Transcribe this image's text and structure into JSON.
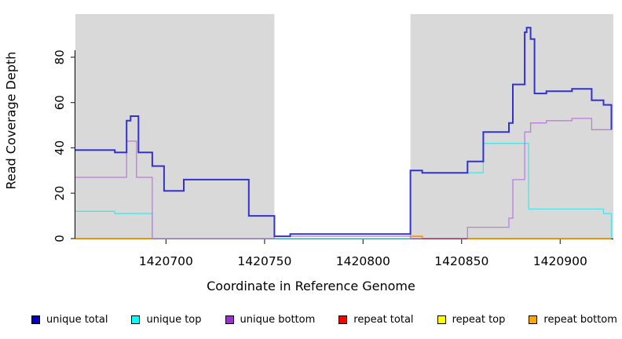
{
  "chart_data": {
    "type": "line",
    "subtype": "step",
    "title": "",
    "xlabel": "Coordinate in Reference Genome",
    "ylabel": "Read Coverage Depth",
    "xlim": [
      1420654,
      1420927
    ],
    "ylim": [
      0,
      99
    ],
    "x_ticks": [
      1420700,
      1420750,
      1420800,
      1420850,
      1420900
    ],
    "y_ticks": [
      0,
      20,
      40,
      60,
      80
    ],
    "grid": false,
    "legend_position": "bottom",
    "shaded_regions": {
      "color": "#d9d9d9",
      "ranges": [
        [
          1420654,
          1420755
        ],
        [
          1420824,
          1420927
        ]
      ]
    },
    "legend": {
      "entries": [
        {
          "label": "unique total",
          "color": "#0000CD"
        },
        {
          "label": "unique top",
          "color": "#00FFFF"
        },
        {
          "label": "unique bottom",
          "color": "#9932CC"
        },
        {
          "label": "repeat total",
          "color": "#FF0000"
        },
        {
          "label": "repeat top",
          "color": "#FFFF00"
        },
        {
          "label": "repeat bottom",
          "color": "#FFA500"
        }
      ]
    },
    "series": [
      {
        "name": "zero baseline",
        "color": "#A2D6A2",
        "width": 1.2,
        "segments": [
          {
            "points": [
              [
                1420693,
                0
              ]
            ],
            "end": 1420824
          }
        ]
      },
      {
        "name": "unique top",
        "color": "#4FE3E3",
        "width": 1.3,
        "segments": [
          {
            "points": [
              [
                1420654,
                12
              ],
              [
                1420674,
                11
              ],
              [
                1420693,
                0
              ],
              [
                1420824,
                30
              ],
              [
                1420830,
                29
              ],
              [
                1420861,
                42
              ],
              [
                1420884,
                13
              ],
              [
                1420922,
                11
              ],
              [
                1420926,
                0
              ]
            ],
            "end": 1420926
          }
        ]
      },
      {
        "name": "unique bottom",
        "color": "#BD7CDE",
        "width": 1.3,
        "segments": [
          {
            "points": [
              [
                1420654,
                27
              ],
              [
                1420680,
                43
              ],
              [
                1420685,
                27
              ],
              [
                1420693,
                0
              ],
              [
                1420755,
                1
              ],
              [
                1420824,
                0
              ],
              [
                1420853,
                5
              ],
              [
                1420874,
                9
              ],
              [
                1420876,
                26
              ],
              [
                1420882,
                47
              ],
              [
                1420885,
                51
              ],
              [
                1420893,
                52
              ],
              [
                1420906,
                53
              ],
              [
                1420916,
                48
              ]
            ],
            "end": 1420926
          }
        ]
      },
      {
        "name": "repeat total",
        "color": "#CC4466",
        "width": 1.3,
        "segments": [
          {
            "points": [
              [
                1420830,
                0
              ]
            ],
            "end": 1420853
          }
        ]
      },
      {
        "name": "repeat top",
        "color": "#FFFF00",
        "width": 1.2,
        "segments": []
      },
      {
        "name": "repeat bottom",
        "color": "#FF9400",
        "width": 1.8,
        "segments": [
          {
            "points": [
              [
                1420654,
                0
              ]
            ],
            "end": 1420693
          },
          {
            "points": [
              [
                1420824,
                1
              ],
              [
                1420830,
                0
              ]
            ],
            "end": 1420830
          },
          {
            "points": [
              [
                1420853,
                0
              ]
            ],
            "end": 1420926
          }
        ]
      },
      {
        "name": "unique total",
        "color": "#3232D2",
        "width": 2,
        "segments": [
          {
            "points": [
              [
                1420654,
                39
              ],
              [
                1420674,
                38
              ],
              [
                1420680,
                52
              ],
              [
                1420682,
                54
              ],
              [
                1420686,
                38
              ],
              [
                1420693,
                32
              ],
              [
                1420699,
                21
              ],
              [
                1420709,
                26
              ],
              [
                1420742,
                10
              ],
              [
                1420755,
                1
              ],
              [
                1420763,
                2
              ],
              [
                1420824,
                30
              ],
              [
                1420830,
                29
              ],
              [
                1420853,
                34
              ],
              [
                1420861,
                47
              ],
              [
                1420874,
                51
              ],
              [
                1420876,
                68
              ],
              [
                1420882,
                91
              ],
              [
                1420883,
                93
              ],
              [
                1420885,
                88
              ],
              [
                1420887,
                64
              ],
              [
                1420893,
                65
              ],
              [
                1420906,
                66
              ],
              [
                1420916,
                61
              ],
              [
                1420922,
                59
              ],
              [
                1420926,
                48
              ]
            ],
            "end": 1420926
          }
        ]
      }
    ]
  }
}
